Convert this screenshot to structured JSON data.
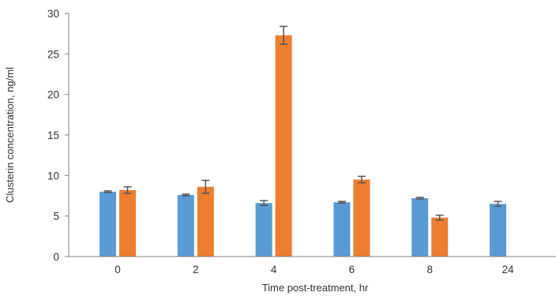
{
  "chart_data": {
    "type": "bar",
    "title": "",
    "xlabel": "Time post-treatment, hr",
    "ylabel": "Clusterin concentration, ng/ml",
    "categories": [
      "0",
      "2",
      "4",
      "6",
      "8",
      "24"
    ],
    "ylim": [
      0,
      30
    ],
    "yticks": [
      0,
      5,
      10,
      15,
      20,
      25,
      30
    ],
    "grid": false,
    "legend": "none",
    "series": [
      {
        "color": "#5b9bd5",
        "values": [
          8.0,
          7.6,
          6.6,
          6.7,
          7.2,
          6.5
        ],
        "error": [
          0.1,
          0.1,
          0.3,
          0.1,
          0.1,
          0.3
        ]
      },
      {
        "color": "#ed7d31",
        "values": [
          8.2,
          8.6,
          27.3,
          9.5,
          4.8,
          null
        ],
        "error": [
          0.4,
          0.8,
          1.1,
          0.4,
          0.3,
          null
        ]
      }
    ]
  },
  "colors": {
    "axis": "#7f7f7f",
    "text": "#333333",
    "errorbar": "#555555"
  }
}
